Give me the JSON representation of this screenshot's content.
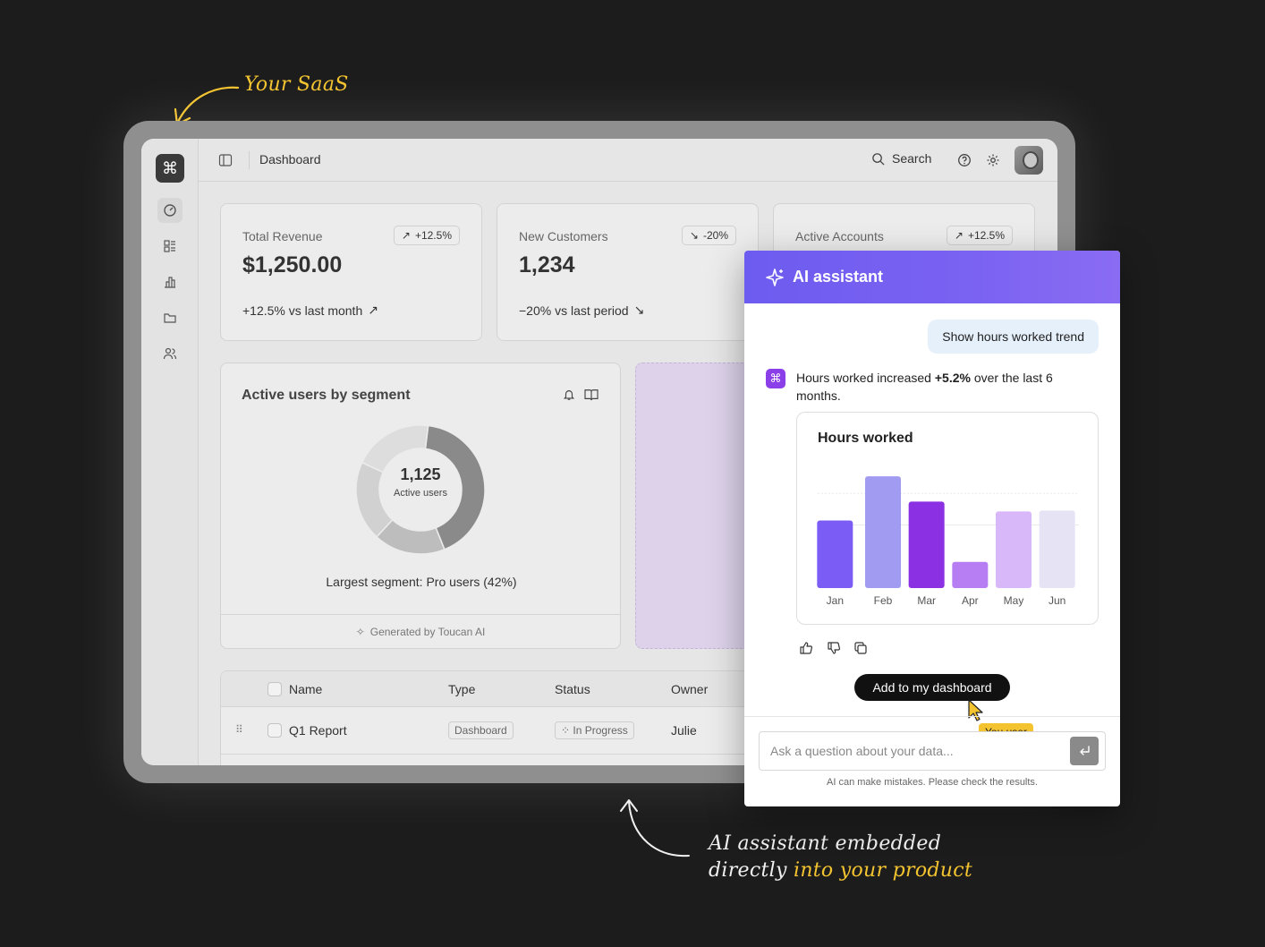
{
  "annotations": {
    "saas_note": "Your SaaS",
    "ai_note_line1": "AI assistant embedded",
    "ai_note_line2_prefix": "directly ",
    "ai_note_line2_highlight": "into your product"
  },
  "header": {
    "title": "Dashboard",
    "search_label": "Search"
  },
  "kpis": [
    {
      "label": "Total Revenue",
      "value": "$1,250.00",
      "badge": "+12.5%",
      "trend": "up",
      "footer": "+12.5% vs last month"
    },
    {
      "label": "New Customers",
      "value": "1,234",
      "badge": "-20%",
      "trend": "down",
      "footer": "−20% vs last period"
    },
    {
      "label": "Active Accounts",
      "badge": "+12.5%",
      "trend": "up"
    }
  ],
  "segment_card": {
    "title": "Active users by segment",
    "center_value": "1,125",
    "center_label": "Active users",
    "note": "Largest segment: Pro users (42%)",
    "generated": "Generated by Toucan AI",
    "segments": [
      {
        "share": 42,
        "color": "#8a8a8a"
      },
      {
        "share": 18,
        "color": "#bdbdbd"
      },
      {
        "share": 20,
        "color": "#d1d1d1"
      },
      {
        "share": 20,
        "color": "#dddddd"
      }
    ]
  },
  "table": {
    "headers": {
      "name": "Name",
      "type": "Type",
      "status": "Status",
      "owner": "Owner"
    },
    "rows": [
      {
        "name": "Q1 Report",
        "type": "Dashboard",
        "status": "In Progress",
        "owner": "Julie"
      }
    ]
  },
  "assistant": {
    "title": "AI assistant",
    "user_message": "Show hours worked trend",
    "bot_prefix": "Hours worked increased ",
    "bot_bold": "+5.2%",
    "bot_suffix": " over the last 6 months.",
    "add_button": "Add to my dashboard",
    "cursor_label": "You user",
    "input_placeholder": "Ask a question about your data...",
    "disclaimer": "AI can make mistakes. Please check the results."
  },
  "chart_data": {
    "type": "bar",
    "title": "Hours worked",
    "categories": [
      "Jan",
      "Feb",
      "Mar",
      "Apr",
      "May",
      "Jun"
    ],
    "values": [
      75,
      124,
      96,
      29,
      85,
      86
    ],
    "colors": [
      "#7b5cf5",
      "#a19cf2",
      "#8b30e3",
      "#b77ef4",
      "#d9b8fa",
      "#e6e3f5"
    ],
    "ylim": [
      0,
      140
    ],
    "grid": true
  }
}
